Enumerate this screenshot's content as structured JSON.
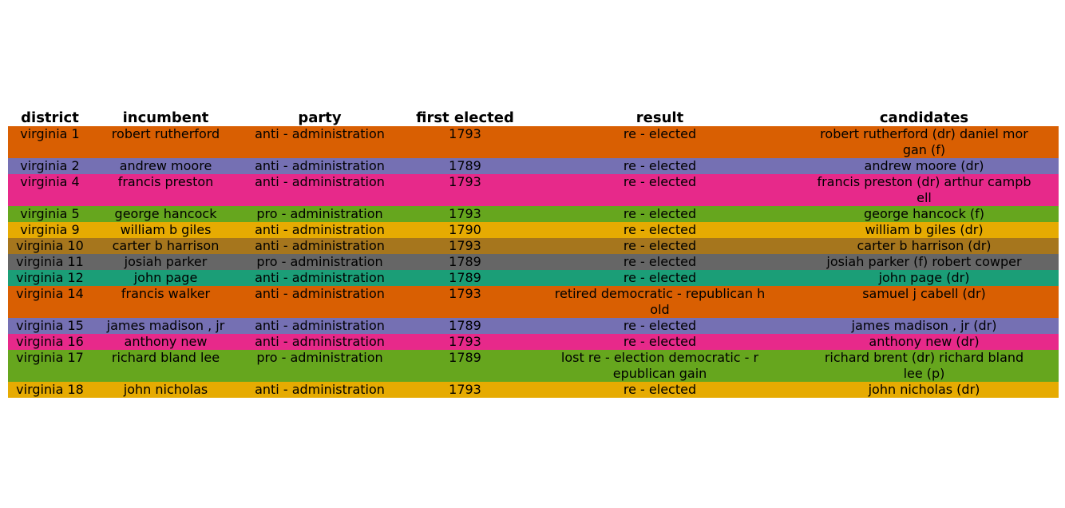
{
  "chart_data": {
    "type": "table",
    "columns": [
      "district",
      "incumbent",
      "party",
      "first elected",
      "result",
      "candidates"
    ],
    "rows": [
      {
        "color": "#d95f02",
        "cells": [
          "virginia 1",
          "robert rutherford",
          "anti - administration",
          "1793",
          "re - elected",
          "robert rutherford (dr) daniel mor\ngan (f)"
        ]
      },
      {
        "color": "#7570b3",
        "cells": [
          "virginia 2",
          "andrew moore",
          "anti - administration",
          "1789",
          "re - elected",
          "andrew moore (dr)"
        ]
      },
      {
        "color": "#e7298a",
        "cells": [
          "virginia 4",
          "francis preston",
          "anti - administration",
          "1793",
          "re - elected",
          "francis preston (dr) arthur campb\nell"
        ]
      },
      {
        "color": "#66a61e",
        "cells": [
          "virginia 5",
          "george hancock",
          "pro - administration",
          "1793",
          "re - elected",
          "george hancock (f)"
        ]
      },
      {
        "color": "#e6ab02",
        "cells": [
          "virginia 9",
          "william b giles",
          "anti - administration",
          "1790",
          "re - elected",
          "william b giles (dr)"
        ]
      },
      {
        "color": "#a6761d",
        "cells": [
          "virginia 10",
          "carter b harrison",
          "anti - administration",
          "1793",
          "re - elected",
          "carter b harrison (dr)"
        ]
      },
      {
        "color": "#666666",
        "cells": [
          "virginia 11",
          "josiah parker",
          "pro - administration",
          "1789",
          "re - elected",
          "josiah parker (f) robert cowper"
        ]
      },
      {
        "color": "#1b9e77",
        "cells": [
          "virginia 12",
          "john page",
          "anti - administration",
          "1789",
          "re - elected",
          "john page (dr)"
        ]
      },
      {
        "color": "#d95f02",
        "cells": [
          "virginia 14",
          "francis walker",
          "anti - administration",
          "1793",
          "retired democratic - republican h\nold",
          "samuel j cabell (dr)"
        ]
      },
      {
        "color": "#7570b3",
        "cells": [
          "virginia 15",
          "james madison , jr",
          "anti - administration",
          "1789",
          "re - elected",
          "james madison , jr (dr)"
        ]
      },
      {
        "color": "#e7298a",
        "cells": [
          "virginia 16",
          "anthony new",
          "anti - administration",
          "1793",
          "re - elected",
          "anthony new (dr)"
        ]
      },
      {
        "color": "#66a61e",
        "cells": [
          "virginia 17",
          "richard bland lee",
          "pro - administration",
          "1789",
          "lost re - election democratic - r\nepublican gain",
          "richard brent (dr) richard bland\nlee (p)"
        ]
      },
      {
        "color": "#e6ab02",
        "cells": [
          "virginia 18",
          "john nicholas",
          "anti - administration",
          "1793",
          "re - elected",
          "john nicholas (dr)"
        ]
      }
    ]
  }
}
